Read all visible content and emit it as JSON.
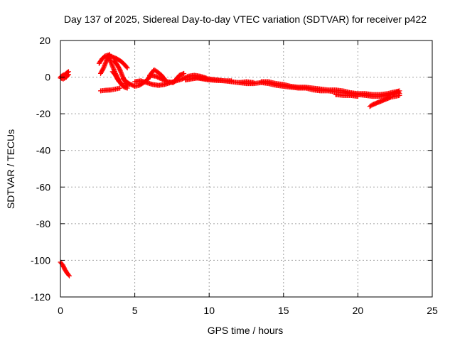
{
  "chart_data": {
    "type": "scatter",
    "title": "Day 137 of 2025, Sidereal Day-to-day VTEC variation (SDTVAR) for receiver p422",
    "xlabel": "GPS time / hours",
    "ylabel": "SDTVAR / TECUs",
    "xlim": [
      0,
      25
    ],
    "ylim": [
      -120,
      20
    ],
    "xticks": [
      0,
      5,
      10,
      15,
      20,
      25
    ],
    "yticks": [
      20,
      0,
      -20,
      -40,
      -60,
      -80,
      -100,
      -120
    ],
    "xtick_labels": [
      "0",
      "5",
      "10",
      "15",
      "20",
      "25"
    ],
    "ytick_labels": [
      "20",
      "0",
      "-20",
      "-40",
      "-60",
      "-80",
      "-100",
      "-120"
    ],
    "grid": true,
    "marker": "plus",
    "series": [
      {
        "name": "SDTVAR",
        "color": "#ff0000",
        "segments": [
          [
            [
              0.0,
              0.0
            ],
            [
              0.15,
              1.0
            ],
            [
              0.3,
              1.5
            ],
            [
              0.45,
              2.5
            ],
            [
              0.55,
              3.0
            ]
          ],
          [
            [
              0.0,
              -0.5
            ],
            [
              0.2,
              -1.0
            ],
            [
              0.4,
              0.0
            ],
            [
              0.55,
              1.5
            ]
          ],
          [
            [
              0.0,
              -101.0
            ],
            [
              0.15,
              -102.5
            ],
            [
              0.3,
              -105.0
            ],
            [
              0.45,
              -107.0
            ],
            [
              0.6,
              -108.5
            ]
          ],
          [
            [
              2.6,
              7.5
            ],
            [
              2.8,
              10.0
            ],
            [
              3.0,
              11.5
            ],
            [
              3.2,
              12.0
            ],
            [
              3.5,
              11.0
            ],
            [
              3.8,
              10.0
            ],
            [
              4.1,
              8.5
            ],
            [
              4.35,
              6.5
            ],
            [
              4.5,
              5.0
            ]
          ],
          [
            [
              2.7,
              2.0
            ],
            [
              2.9,
              5.0
            ],
            [
              3.1,
              9.0
            ],
            [
              3.3,
              12.5
            ]
          ],
          [
            [
              3.3,
              10.0
            ],
            [
              3.5,
              6.0
            ],
            [
              3.7,
              2.0
            ],
            [
              3.9,
              -1.5
            ],
            [
              4.1,
              -4.0
            ],
            [
              4.3,
              -5.5
            ],
            [
              4.5,
              -6.0
            ]
          ],
          [
            [
              3.5,
              3.0
            ],
            [
              3.7,
              1.0
            ],
            [
              3.9,
              -2.0
            ],
            [
              4.1,
              -3.5
            ]
          ],
          [
            [
              3.6,
              9.0
            ],
            [
              3.8,
              7.0
            ],
            [
              4.0,
              4.0
            ],
            [
              4.2,
              0.0
            ],
            [
              4.4,
              -3.0
            ],
            [
              4.5,
              -5.0
            ]
          ],
          [
            [
              2.7,
              -7.5
            ],
            [
              3.0,
              -7.2
            ],
            [
              3.4,
              -7.0
            ],
            [
              3.7,
              -6.5
            ],
            [
              4.0,
              -6.0
            ]
          ],
          [
            [
              4.2,
              -1.0
            ],
            [
              4.6,
              -3.5
            ],
            [
              5.0,
              -5.0
            ],
            [
              5.3,
              -4.5
            ],
            [
              5.6,
              -3.0
            ],
            [
              5.9,
              -1.0
            ],
            [
              6.1,
              2.0
            ],
            [
              6.3,
              4.0
            ],
            [
              6.5,
              3.0
            ],
            [
              6.8,
              1.0
            ],
            [
              7.0,
              -1.0
            ]
          ],
          [
            [
              5.0,
              -2.5
            ],
            [
              5.4,
              -2.0
            ],
            [
              5.8,
              -3.0
            ],
            [
              6.2,
              -4.0
            ],
            [
              6.6,
              -4.5
            ],
            [
              7.0,
              -4.0
            ],
            [
              7.4,
              -3.0
            ],
            [
              7.8,
              -2.0
            ],
            [
              8.2,
              -1.0
            ],
            [
              8.6,
              0.5
            ],
            [
              9.0,
              1.0
            ],
            [
              9.4,
              0.5
            ],
            [
              9.8,
              -0.5
            ]
          ],
          [
            [
              6.0,
              1.0
            ],
            [
              6.4,
              0.5
            ],
            [
              6.8,
              -1.0
            ],
            [
              7.2,
              -2.5
            ],
            [
              7.6,
              -3.0
            ],
            [
              8.0,
              1.0
            ],
            [
              8.3,
              2.0
            ]
          ],
          [
            [
              8.4,
              -1.5
            ],
            [
              8.8,
              -1.0
            ],
            [
              9.2,
              -0.5
            ],
            [
              9.6,
              -1.0
            ],
            [
              10.0,
              -1.5
            ],
            [
              10.5,
              -1.8
            ],
            [
              11.0,
              -2.0
            ],
            [
              11.5,
              -2.5
            ],
            [
              12.0,
              -3.0
            ],
            [
              12.5,
              -2.5
            ],
            [
              13.0,
              -3.0
            ]
          ],
          [
            [
              9.0,
              0.0
            ],
            [
              9.5,
              -0.5
            ],
            [
              10.0,
              -1.0
            ],
            [
              10.5,
              -1.5
            ],
            [
              11.0,
              -2.0
            ],
            [
              11.5,
              -2.0
            ]
          ],
          [
            [
              12.0,
              -3.0
            ],
            [
              12.5,
              -3.5
            ],
            [
              13.0,
              -3.5
            ],
            [
              13.5,
              -3.0
            ],
            [
              14.0,
              -3.5
            ],
            [
              14.5,
              -4.5
            ],
            [
              15.0,
              -5.0
            ],
            [
              15.5,
              -5.5
            ],
            [
              16.0,
              -6.0
            ],
            [
              16.5,
              -6.0
            ],
            [
              17.0,
              -7.0
            ],
            [
              17.5,
              -7.5
            ],
            [
              18.0,
              -7.5
            ],
            [
              18.5,
              -8.0
            ],
            [
              19.0,
              -8.5
            ],
            [
              19.5,
              -9.0
            ],
            [
              20.0,
              -9.5
            ],
            [
              20.5,
              -10.0
            ],
            [
              21.0,
              -10.5
            ],
            [
              21.5,
              -10.5
            ],
            [
              22.0,
              -10.0
            ],
            [
              22.4,
              -9.0
            ],
            [
              22.7,
              -8.0
            ],
            [
              22.8,
              -9.0
            ]
          ],
          [
            [
              13.5,
              -2.5
            ],
            [
              14.0,
              -2.5
            ],
            [
              14.5,
              -3.5
            ],
            [
              15.0,
              -4.0
            ],
            [
              15.5,
              -5.0
            ],
            [
              16.0,
              -5.5
            ],
            [
              16.5,
              -5.5
            ],
            [
              17.0,
              -6.0
            ],
            [
              17.5,
              -6.5
            ],
            [
              18.0,
              -7.0
            ],
            [
              18.5,
              -7.0
            ],
            [
              19.0,
              -7.5
            ],
            [
              19.5,
              -8.5
            ],
            [
              20.0,
              -9.0
            ],
            [
              20.5,
              -9.0
            ],
            [
              21.0,
              -9.5
            ],
            [
              21.5,
              -9.5
            ],
            [
              22.0,
              -9.0
            ],
            [
              22.5,
              -8.0
            ],
            [
              22.8,
              -7.5
            ]
          ],
          [
            [
              18.5,
              -9.5
            ],
            [
              19.0,
              -10.0
            ],
            [
              19.5,
              -10.0
            ],
            [
              20.0,
              -10.5
            ]
          ],
          [
            [
              20.8,
              -16.0
            ],
            [
              21.0,
              -15.0
            ],
            [
              21.3,
              -14.0
            ],
            [
              21.6,
              -13.0
            ],
            [
              21.9,
              -12.0
            ],
            [
              22.2,
              -11.0
            ],
            [
              22.5,
              -10.5
            ],
            [
              22.8,
              -10.0
            ]
          ]
        ]
      }
    ]
  }
}
